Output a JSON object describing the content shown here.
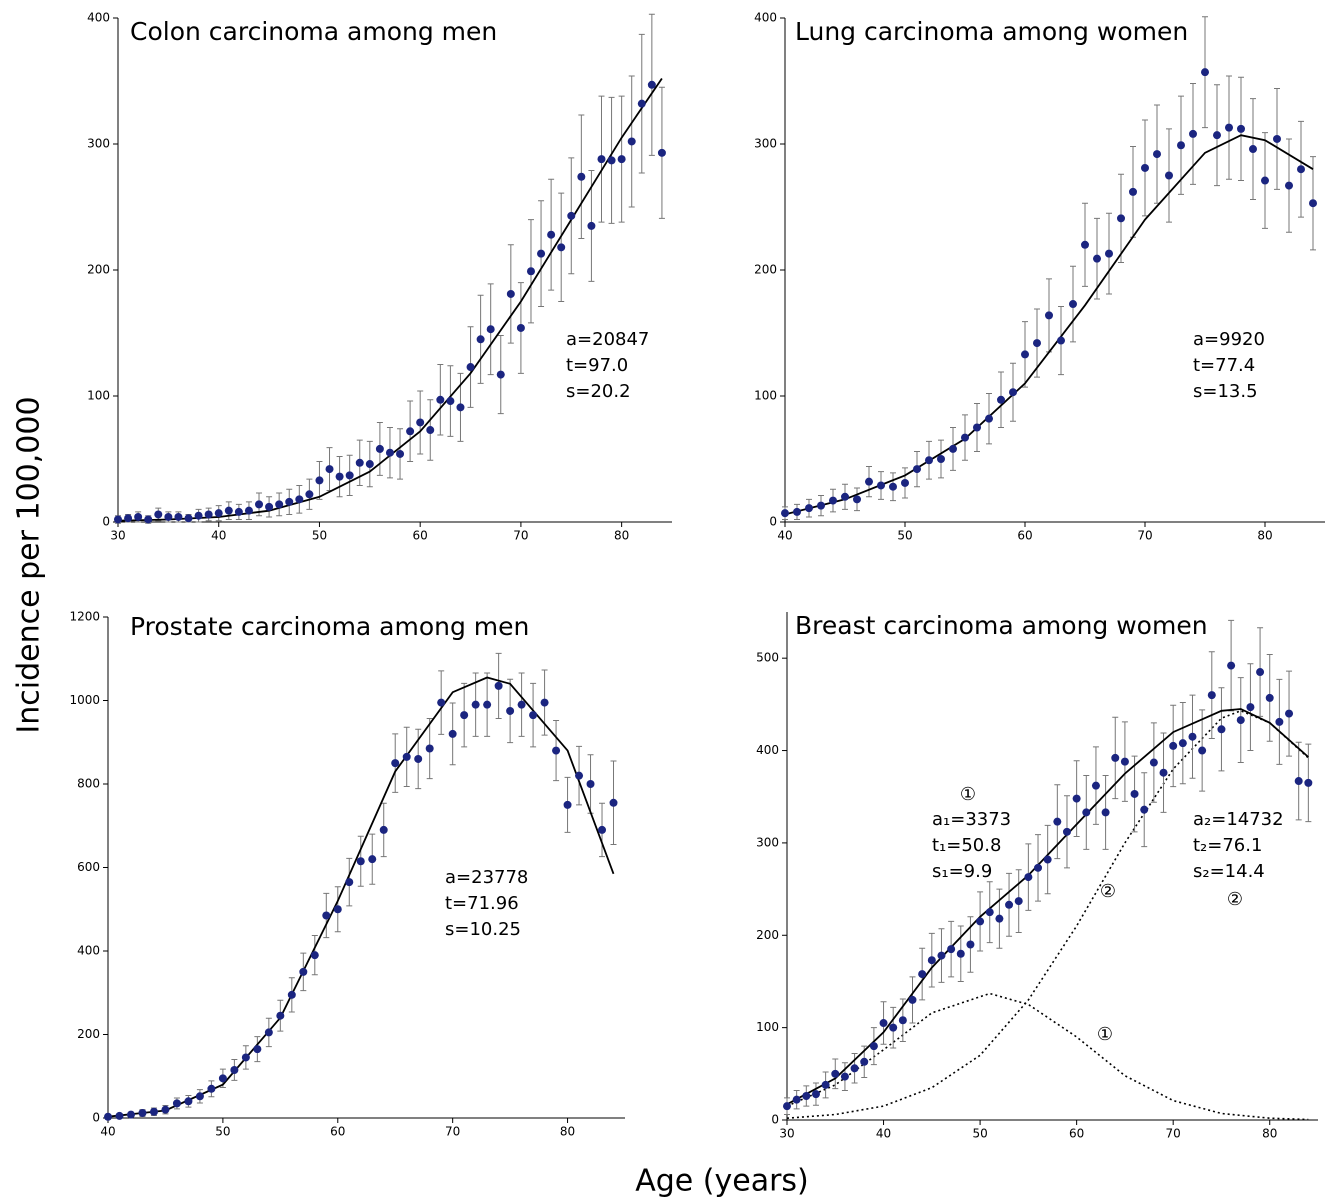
{
  "ylabel": "Incidence per 100,000",
  "xlabel": "Age (years)",
  "chart_data": [
    {
      "type": "scatter",
      "title": "Colon carcinoma among men",
      "x": [
        30,
        31,
        32,
        33,
        34,
        35,
        36,
        37,
        38,
        39,
        40,
        41,
        42,
        43,
        44,
        45,
        46,
        47,
        48,
        49,
        50,
        51,
        52,
        53,
        54,
        55,
        56,
        57,
        58,
        59,
        60,
        61,
        62,
        63,
        64,
        65,
        66,
        67,
        68,
        69,
        70,
        71,
        72,
        73,
        74,
        75,
        76,
        77,
        78,
        79,
        80,
        81,
        82,
        83,
        84
      ],
      "series": [
        {
          "color": "#1b2580",
          "values": [
            2,
            3,
            4,
            2,
            6,
            4,
            4,
            3,
            5,
            6,
            7,
            9,
            8,
            9,
            14,
            12,
            14,
            16,
            18,
            22,
            33,
            42,
            36,
            37,
            47,
            46,
            58,
            55,
            54,
            72,
            79,
            73,
            97,
            96,
            91,
            123,
            145,
            153,
            117,
            181,
            154,
            199,
            213,
            228,
            218,
            243,
            274,
            235,
            288,
            287,
            288,
            302,
            332,
            347,
            293
          ],
          "errors": [
            3,
            3,
            4,
            3,
            5,
            4,
            4,
            3,
            5,
            5,
            6,
            7,
            6,
            7,
            9,
            8,
            9,
            10,
            11,
            12,
            15,
            17,
            16,
            16,
            18,
            18,
            21,
            20,
            20,
            24,
            25,
            24,
            28,
            28,
            27,
            32,
            35,
            36,
            31,
            39,
            36,
            41,
            42,
            44,
            43,
            46,
            49,
            44,
            50,
            50,
            50,
            52,
            55,
            56,
            52
          ]
        }
      ],
      "fit": {
        "color": "#000000",
        "x": [
          30,
          35,
          40,
          45,
          50,
          55,
          60,
          65,
          70,
          75,
          80,
          84
        ],
        "values": [
          1,
          2,
          4,
          9,
          20,
          40,
          72,
          118,
          175,
          240,
          305,
          352
        ]
      },
      "annotations": [
        "a=20847",
        "t=97.0",
        "s=20.2"
      ],
      "xlim": [
        30,
        85
      ],
      "ylim": [
        0,
        400
      ],
      "xticks": [
        30,
        40,
        50,
        60,
        70,
        80
      ],
      "yticks": [
        0,
        100,
        200,
        300,
        400
      ]
    },
    {
      "type": "scatter",
      "title": "Lung carcinoma among women",
      "x": [
        40,
        41,
        42,
        43,
        44,
        45,
        46,
        47,
        48,
        49,
        50,
        51,
        52,
        53,
        54,
        55,
        56,
        57,
        58,
        59,
        60,
        61,
        62,
        63,
        64,
        65,
        66,
        67,
        68,
        69,
        70,
        71,
        72,
        73,
        74,
        75,
        76,
        77,
        78,
        79,
        80,
        81,
        82,
        83,
        84
      ],
      "series": [
        {
          "color": "#1b2580",
          "values": [
            7,
            8,
            11,
            13,
            17,
            20,
            18,
            32,
            29,
            28,
            31,
            42,
            49,
            50,
            58,
            67,
            75,
            82,
            97,
            103,
            133,
            142,
            164,
            144,
            173,
            220,
            209,
            213,
            241,
            262,
            281,
            292,
            275,
            299,
            308,
            357,
            307,
            313,
            312,
            296,
            271,
            304,
            267,
            280,
            253
          ],
          "errors": [
            5,
            6,
            7,
            8,
            9,
            10,
            9,
            12,
            11,
            11,
            12,
            14,
            15,
            15,
            17,
            18,
            19,
            20,
            22,
            23,
            26,
            27,
            29,
            27,
            30,
            33,
            32,
            32,
            35,
            36,
            38,
            39,
            37,
            39,
            40,
            44,
            40,
            41,
            41,
            40,
            38,
            40,
            37,
            38,
            37
          ]
        }
      ],
      "fit": {
        "color": "#000000",
        "x": [
          40,
          45,
          50,
          55,
          60,
          65,
          70,
          75,
          78,
          80,
          84
        ],
        "values": [
          6,
          18,
          37,
          66,
          110,
          172,
          240,
          293,
          307,
          303,
          280
        ]
      },
      "annotations": [
        "a=9920",
        "t=77.4",
        "s=13.5"
      ],
      "xlim": [
        40,
        85
      ],
      "ylim": [
        0,
        400
      ],
      "xticks": [
        40,
        50,
        60,
        70,
        80
      ],
      "yticks": [
        0,
        100,
        200,
        300,
        400
      ]
    },
    {
      "type": "scatter",
      "title": "Prostate carcinoma among men",
      "x": [
        40,
        41,
        42,
        43,
        44,
        45,
        46,
        47,
        48,
        49,
        50,
        51,
        52,
        53,
        54,
        55,
        56,
        57,
        58,
        59,
        60,
        61,
        62,
        63,
        64,
        65,
        66,
        67,
        68,
        69,
        70,
        71,
        72,
        73,
        74,
        75,
        76,
        77,
        78,
        79,
        80,
        81,
        82,
        83,
        84
      ],
      "series": [
        {
          "color": "#1b2580",
          "values": [
            3,
            5,
            8,
            12,
            15,
            20,
            35,
            40,
            52,
            70,
            95,
            115,
            145,
            165,
            205,
            245,
            295,
            350,
            390,
            485,
            500,
            565,
            615,
            620,
            690,
            850,
            865,
            860,
            885,
            995,
            920,
            965,
            990,
            990,
            1035,
            975,
            990,
            965,
            995,
            880,
            750,
            820,
            800,
            690,
            755
          ],
          "errors": [
            4,
            5,
            6,
            8,
            9,
            10,
            13,
            14,
            16,
            19,
            22,
            25,
            28,
            30,
            34,
            37,
            41,
            45,
            47,
            53,
            54,
            57,
            60,
            60,
            64,
            70,
            71,
            71,
            72,
            76,
            74,
            76,
            76,
            76,
            78,
            76,
            76,
            76,
            78,
            72,
            66,
            70,
            70,
            64,
            100
          ]
        }
      ],
      "fit": {
        "color": "#000000",
        "x": [
          40,
          45,
          50,
          55,
          60,
          65,
          70,
          73,
          75,
          80,
          84
        ],
        "values": [
          3,
          18,
          80,
          240,
          520,
          830,
          1020,
          1055,
          1040,
          880,
          585
        ]
      },
      "annotations": [
        "a=23778",
        "t=71.96",
        "s=10.25"
      ],
      "xlim": [
        40,
        85
      ],
      "ylim": [
        0,
        1200
      ],
      "xticks": [
        40,
        50,
        60,
        70,
        80
      ],
      "yticks": [
        0,
        200,
        400,
        600,
        800,
        1000,
        1200
      ]
    },
    {
      "type": "scatter",
      "title": "Breast carcinoma among women",
      "x": [
        30,
        31,
        32,
        33,
        34,
        35,
        36,
        37,
        38,
        39,
        40,
        41,
        42,
        43,
        44,
        45,
        46,
        47,
        48,
        49,
        50,
        51,
        52,
        53,
        54,
        55,
        56,
        57,
        58,
        59,
        60,
        61,
        62,
        63,
        64,
        65,
        66,
        67,
        68,
        69,
        70,
        71,
        72,
        73,
        74,
        75,
        76,
        77,
        78,
        79,
        80,
        81,
        82,
        83,
        84
      ],
      "series": [
        {
          "color": "#1b2580",
          "values": [
            15,
            22,
            26,
            28,
            38,
            50,
            47,
            56,
            63,
            80,
            105,
            100,
            108,
            130,
            158,
            173,
            178,
            185,
            180,
            190,
            215,
            225,
            218,
            233,
            237,
            263,
            273,
            282,
            323,
            312,
            348,
            333,
            362,
            333,
            392,
            388,
            353,
            336,
            387,
            376,
            405,
            408,
            415,
            400,
            460,
            423,
            492,
            433,
            447,
            485,
            457,
            431,
            440,
            367,
            365
          ],
          "errors": [
            9,
            10,
            11,
            12,
            14,
            16,
            15,
            16,
            17,
            20,
            23,
            22,
            23,
            25,
            28,
            29,
            29,
            30,
            30,
            30,
            32,
            33,
            32,
            34,
            34,
            36,
            36,
            37,
            40,
            39,
            41,
            40,
            42,
            40,
            44,
            43,
            41,
            40,
            43,
            43,
            44,
            44,
            45,
            44,
            47,
            45,
            49,
            46,
            47,
            48,
            47,
            46,
            46,
            42,
            42
          ]
        }
      ],
      "fit": {
        "color": "#000000",
        "x": [
          30,
          35,
          40,
          45,
          50,
          55,
          60,
          65,
          70,
          75,
          77,
          80,
          84
        ],
        "values": [
          17,
          45,
          95,
          165,
          220,
          265,
          320,
          375,
          420,
          443,
          445,
          430,
          393
        ]
      },
      "components": [
        {
          "label": "①",
          "x": [
            30,
            35,
            40,
            45,
            51,
            55,
            60,
            65,
            70,
            75,
            80,
            84
          ],
          "values": [
            15,
            38,
            76,
            116,
            137,
            125,
            90,
            48,
            21,
            7,
            2,
            0.5
          ]
        },
        {
          "label": "②",
          "x": [
            30,
            35,
            40,
            45,
            50,
            55,
            60,
            65,
            70,
            75,
            77,
            80,
            84
          ],
          "values": [
            2,
            6,
            15,
            35,
            70,
            130,
            210,
            300,
            380,
            435,
            443,
            430,
            392
          ]
        }
      ],
      "annotations": [
        "①",
        "a₁=3373",
        "t₁=50.8",
        "s₁=9.9",
        "a₂=14732",
        "t₂=76.1",
        "s₂=14.4",
        "②"
      ],
      "xlim": [
        30,
        85
      ],
      "ylim": [
        0,
        550
      ],
      "xticks": [
        30,
        40,
        50,
        60,
        70,
        80
      ],
      "yticks": [
        0,
        100,
        200,
        300,
        400,
        500
      ]
    }
  ]
}
